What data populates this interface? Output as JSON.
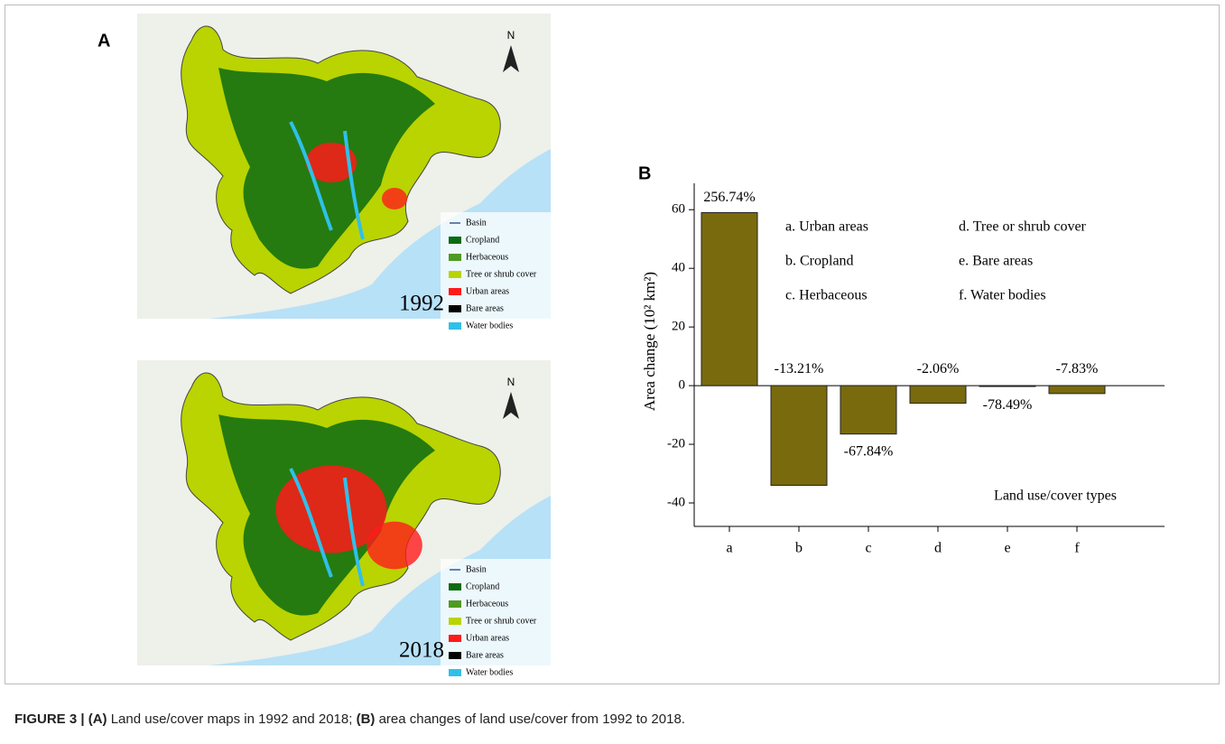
{
  "panel_a": {
    "label": "A",
    "north": "N",
    "legend": [
      {
        "label": "Basin",
        "color": "#3a5a8a",
        "kind": "line"
      },
      {
        "label": "Cropland",
        "color": "#0b6b12",
        "kind": "box"
      },
      {
        "label": "Herbaceous",
        "color": "#4f9a22",
        "kind": "box"
      },
      {
        "label": "Tree or shrub cover",
        "color": "#b9d400",
        "kind": "box"
      },
      {
        "label": "Urban areas",
        "color": "#ff1a1a",
        "kind": "box"
      },
      {
        "label": "Bare areas",
        "color": "#000000",
        "kind": "box"
      },
      {
        "label": "Water bodies",
        "color": "#2fc0ea",
        "kind": "box"
      }
    ],
    "maps": [
      {
        "year": "1992"
      },
      {
        "year": "2018"
      }
    ]
  },
  "chart_data": {
    "type": "bar",
    "panel_label": "B",
    "y_label": "Area change (10² km²)",
    "x_label": "Land use/cover types",
    "categories": [
      "a",
      "b",
      "c",
      "d",
      "e",
      "f"
    ],
    "values": [
      59,
      -34,
      -16.5,
      -6,
      -0.3,
      -2.7
    ],
    "percent_labels": [
      "256.74%",
      "-13.21%",
      "-67.84%",
      "-2.06%",
      "-78.49%",
      "-7.83%"
    ],
    "key": [
      "a. Urban areas",
      "b. Cropland",
      "c. Herbaceous",
      "d. Tree or shrub cover",
      "e. Bare areas",
      "f. Water bodies"
    ],
    "color": "#7a6a0e",
    "ylim": [
      -48,
      69
    ],
    "yticks": [
      -40,
      -20,
      0,
      20,
      40,
      60
    ]
  },
  "caption": {
    "parts": [
      {
        "text": "FIGURE 3 | (A)",
        "bold": true
      },
      {
        "text": " Land use/cover maps in 1992 and 2018; ",
        "bold": false
      },
      {
        "text": "(B)",
        "bold": true
      },
      {
        "text": " area changes of land use/cover from 1992 to 2018.",
        "bold": false
      }
    ]
  }
}
